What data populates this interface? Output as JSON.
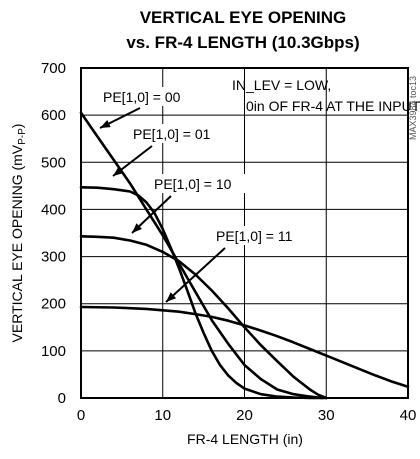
{
  "chart_data": {
    "type": "line",
    "title_line1": "VERTICAL EYE OPENING",
    "title_line2": "vs. FR-4 LENGTH (10.3Gbps)",
    "xlabel": "FR-4 LENGTH (in)",
    "ylabel_main": "VERTICAL EYE OPENING (mV",
    "ylabel_sub": "P-P",
    "ylabel_end": ")",
    "xlim": [
      0,
      40
    ],
    "ylim": [
      0,
      700
    ],
    "xticks": [
      0,
      10,
      20,
      30,
      40
    ],
    "yticks": [
      0,
      100,
      200,
      300,
      400,
      500,
      600,
      700
    ],
    "grid": true,
    "note_line1": "IN_LEV = LOW,",
    "note_line2": "0in OF FR-4 AT THE INPUT",
    "watermark": "MAX3984 toc13",
    "series": [
      {
        "name": "PE[1,0] = 00",
        "x": [
          0,
          2,
          4,
          6,
          8,
          10,
          12,
          14,
          16,
          18,
          20,
          22,
          24,
          26,
          28,
          29.5
        ],
        "y": [
          605,
          555,
          505,
          455,
          400,
          345,
          285,
          225,
          165,
          115,
          70,
          40,
          18,
          8,
          3,
          0
        ]
      },
      {
        "name": "PE[1,0] = 01",
        "x": [
          0,
          2,
          4,
          6,
          7,
          8,
          9,
          10,
          11,
          12,
          13,
          14,
          15,
          16,
          17,
          18,
          19,
          20,
          22,
          24,
          26,
          28,
          30
        ],
        "y": [
          447,
          446,
          443,
          438,
          430,
          415,
          392,
          358,
          318,
          275,
          228,
          180,
          138,
          100,
          70,
          48,
          32,
          20,
          8,
          3,
          1,
          0,
          0
        ]
      },
      {
        "name": "PE[1,0] = 10",
        "x": [
          0,
          2,
          4,
          6,
          8,
          10,
          12,
          14,
          16,
          18,
          20,
          22,
          24,
          26,
          28,
          29,
          30
        ],
        "y": [
          343,
          342,
          340,
          334,
          325,
          310,
          290,
          262,
          228,
          190,
          150,
          112,
          78,
          45,
          18,
          7,
          0
        ]
      },
      {
        "name": "PE[1,0] = 11",
        "x": [
          0,
          4,
          8,
          12,
          14,
          16,
          18,
          20,
          22,
          24,
          26,
          28,
          30,
          32,
          34,
          36,
          38,
          40
        ],
        "y": [
          193,
          192,
          189,
          183,
          178,
          172,
          164,
          154,
          143,
          131,
          118,
          104,
          90,
          76,
          62,
          48,
          35,
          24
        ]
      }
    ],
    "labels": [
      {
        "text": "PE[1,0] = 00",
        "series": 0
      },
      {
        "text": "PE[1,0] = 01",
        "series": 1
      },
      {
        "text": "PE[1,0] = 10",
        "series": 2
      },
      {
        "text": "PE[1,0] = 11",
        "series": 3
      }
    ]
  }
}
